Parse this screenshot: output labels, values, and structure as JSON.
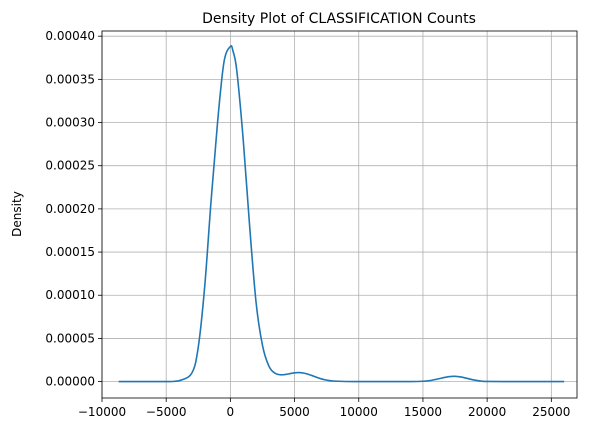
{
  "chart_data": {
    "type": "line",
    "title": "Density Plot of CLASSIFICATION Counts",
    "xlabel": "",
    "ylabel": "Density",
    "xlim": [
      -10000,
      27000
    ],
    "ylim": [
      -1.9e-05,
      0.000406
    ],
    "grid": true,
    "legend": "none",
    "line_color": "#1f77b4",
    "x_ticks": [
      -10000,
      -5000,
      0,
      5000,
      10000,
      15000,
      20000,
      25000
    ],
    "x_tick_labels": [
      "−10000",
      "−5000",
      "0",
      "5000",
      "10000",
      "15000",
      "20000",
      "25000"
    ],
    "y_ticks": [
      0,
      5e-05,
      0.0001,
      0.00015,
      0.0002,
      0.00025,
      0.0003,
      0.00035,
      0.0004
    ],
    "y_tick_labels": [
      "0.00000",
      "0.00005",
      "0.00010",
      "0.00015",
      "0.00020",
      "0.00025",
      "0.00030",
      "0.00035",
      "0.00040"
    ],
    "series": [
      {
        "x": [
          -8700,
          -7000,
          -5000,
          -4000,
          -3000,
          -2500,
          -2000,
          -1500,
          -1000,
          -500,
          0,
          200,
          500,
          1000,
          1500,
          2000,
          2500,
          3000,
          3500,
          4000,
          4500,
          5000,
          5500,
          6000,
          6500,
          7000,
          7500,
          8000,
          9000,
          10000,
          12000,
          14000,
          15000,
          15500,
          16000,
          16500,
          17000,
          17500,
          18000,
          18500,
          19000,
          19500,
          20000,
          22000,
          24000,
          26000
        ],
        "y": [
          0,
          0,
          0,
          1e-06,
          1e-05,
          4e-05,
          0.00011,
          0.00021,
          0.0003,
          0.00037,
          0.000388,
          0.000383,
          0.00036,
          0.00028,
          0.00018,
          9.2e-05,
          4.2e-05,
          1.8e-05,
          9.5e-06,
          7.8e-06,
          8.8e-06,
          1.02e-05,
          1.03e-05,
          8.8e-06,
          6.2e-06,
          3.5e-06,
          1.7e-06,
          7e-07,
          1e-07,
          0,
          0,
          0,
          4e-07,
          1.1e-06,
          2.5e-06,
          4.2e-06,
          5.7e-06,
          6.1e-06,
          5.2e-06,
          3.5e-06,
          1.8e-06,
          7e-07,
          2e-07,
          0,
          0,
          0
        ]
      }
    ]
  }
}
